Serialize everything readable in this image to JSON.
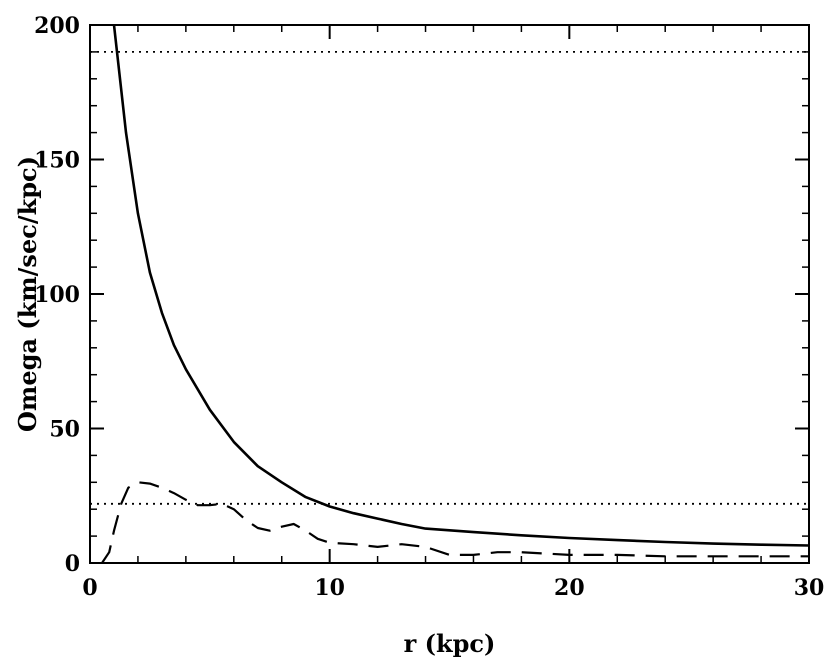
{
  "chart_data": {
    "type": "line",
    "xlabel": "r (kpc)",
    "ylabel": "Omega (km/sec/kpc)",
    "xlim": [
      0,
      30
    ],
    "ylim": [
      0,
      200
    ],
    "x_ticks": [
      0,
      10,
      20,
      30
    ],
    "y_ticks": [
      0,
      50,
      100,
      150,
      200
    ],
    "x_ticks_minor": [
      2,
      4,
      6,
      8,
      12,
      14,
      16,
      18,
      22,
      24,
      26,
      28
    ],
    "y_ticks_minor": [
      10,
      20,
      30,
      40,
      60,
      70,
      80,
      90,
      110,
      120,
      130,
      140,
      160,
      170,
      180,
      190
    ],
    "grid": false,
    "legend": "none",
    "series": [
      {
        "style": "solid",
        "x": [
          1.0,
          1.5,
          2.0,
          2.5,
          3.0,
          3.5,
          4.0,
          5.0,
          6.0,
          7.0,
          8.0,
          9.0,
          10.0,
          11.0,
          12.0,
          13.0,
          14.0,
          16.0,
          18.0,
          20.0,
          22.0,
          24.0,
          26.0,
          28.0,
          30.0
        ],
        "y": [
          200,
          160,
          130,
          108,
          93,
          81,
          72,
          57,
          45,
          36,
          30,
          24.5,
          21,
          18.5,
          16.5,
          14.5,
          12.8,
          11.5,
          10.3,
          9.3,
          8.5,
          7.8,
          7.2,
          6.8,
          6.5
        ]
      },
      {
        "style": "dashed",
        "x": [
          0.5,
          0.8,
          1.0,
          1.3,
          1.6,
          2.0,
          2.5,
          3.0,
          3.5,
          4.0,
          4.5,
          5.0,
          5.5,
          6.0,
          6.5,
          7.0,
          7.5,
          8.0,
          8.5,
          9.0,
          9.5,
          10.0,
          11.0,
          12.0,
          13.0,
          14.0,
          15.0,
          16.0,
          17.0,
          18.0,
          20.0,
          22.0,
          24.0,
          26.0,
          28.0,
          30.0
        ],
        "y": [
          0,
          4,
          12,
          22,
          28,
          30,
          29.5,
          28,
          26,
          23.5,
          21.5,
          21.5,
          22,
          20,
          16,
          13,
          12,
          13.5,
          14.5,
          12,
          9,
          7.5,
          7,
          6,
          7,
          6,
          3,
          3,
          4,
          4,
          3,
          3,
          2.5,
          2.5,
          2.5,
          2.5
        ]
      },
      {
        "style": "dotted",
        "x": [
          0,
          30
        ],
        "y": [
          190,
          190
        ]
      },
      {
        "style": "dotted",
        "x": [
          0,
          30
        ],
        "y": [
          22,
          22
        ]
      }
    ]
  }
}
